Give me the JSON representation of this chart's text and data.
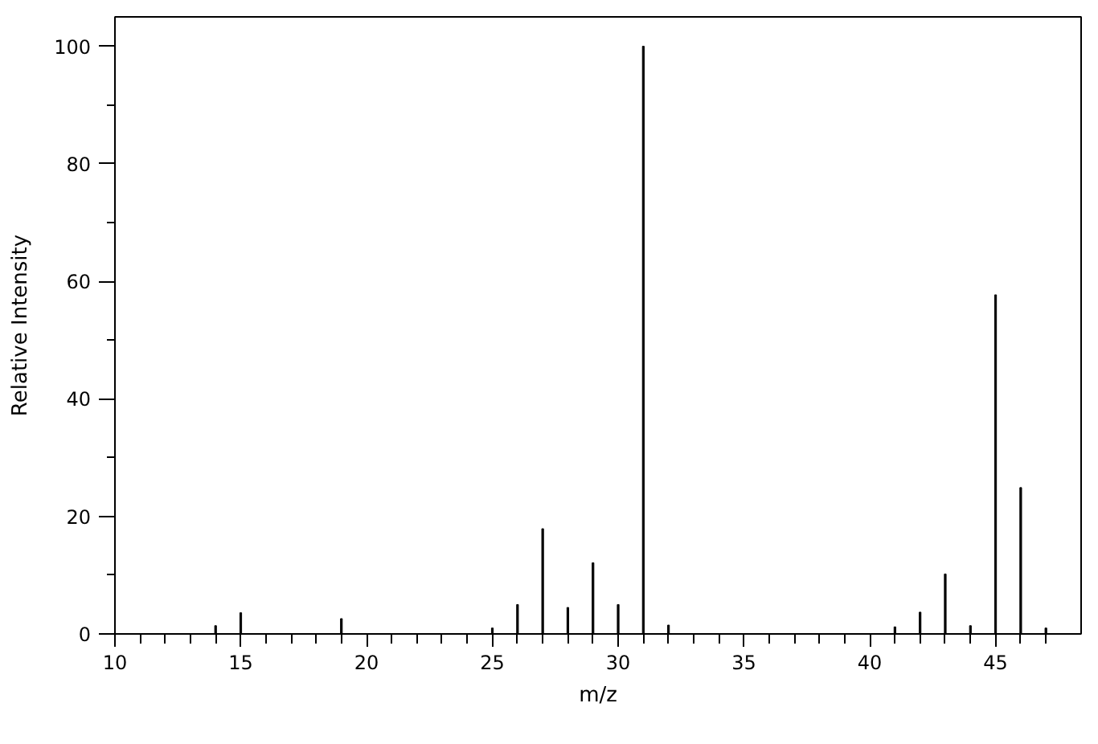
{
  "chart_data": {
    "type": "bar",
    "xlabel": "m/z",
    "ylabel": "Relative Intensity",
    "x": [
      14,
      15,
      19,
      25,
      26,
      27,
      28,
      29,
      30,
      31,
      32,
      41,
      42,
      43,
      44,
      45,
      46,
      47
    ],
    "values": [
      1.4,
      3.6,
      2.6,
      1.0,
      5.0,
      17.9,
      4.5,
      12.1,
      5.0,
      100,
      1.5,
      1.2,
      3.7,
      10.2,
      1.4,
      57.7,
      24.9,
      1.0
    ],
    "color": "#000000",
    "xlim": [
      10,
      48.4
    ],
    "ylim": [
      0,
      105
    ],
    "xticks": [
      10,
      15,
      20,
      25,
      30,
      35,
      40,
      45,
      {
        "value": 11,
        "label": null
      },
      {
        "value": 12,
        "label": null
      },
      {
        "value": 13,
        "label": null
      },
      {
        "value": 14,
        "label": null
      },
      {
        "value": 16,
        "label": null
      },
      {
        "value": 17,
        "label": null
      },
      {
        "value": 18,
        "label": null
      },
      {
        "value": 19,
        "label": null
      },
      {
        "value": 21,
        "label": null
      },
      {
        "value": 22,
        "label": null
      },
      {
        "value": 23,
        "label": null
      },
      {
        "value": 24,
        "label": null
      },
      {
        "value": 26,
        "label": null
      },
      {
        "value": 27,
        "label": null
      },
      {
        "value": 28,
        "label": null
      },
      {
        "value": 29,
        "label": null
      },
      {
        "value": 31,
        "label": null
      },
      {
        "value": 32,
        "label": null
      },
      {
        "value": 33,
        "label": null
      },
      {
        "value": 34,
        "label": null
      },
      {
        "value": 36,
        "label": null
      },
      {
        "value": 37,
        "label": null
      },
      {
        "value": 38,
        "label": null
      },
      {
        "value": 39,
        "label": null
      },
      {
        "value": 41,
        "label": null
      },
      {
        "value": 42,
        "label": null
      },
      {
        "value": 43,
        "label": null
      },
      {
        "value": 44,
        "label": null
      },
      {
        "value": 46,
        "label": null
      },
      {
        "value": 47,
        "label": null
      }
    ],
    "yticks": [
      0,
      20,
      40,
      60,
      80,
      100,
      {
        "value": 10,
        "label": null
      },
      {
        "value": 30,
        "label": null
      },
      {
        "value": 50,
        "label": null
      },
      {
        "value": 70,
        "label": null
      },
      {
        "value": 90,
        "label": null
      }
    ]
  }
}
